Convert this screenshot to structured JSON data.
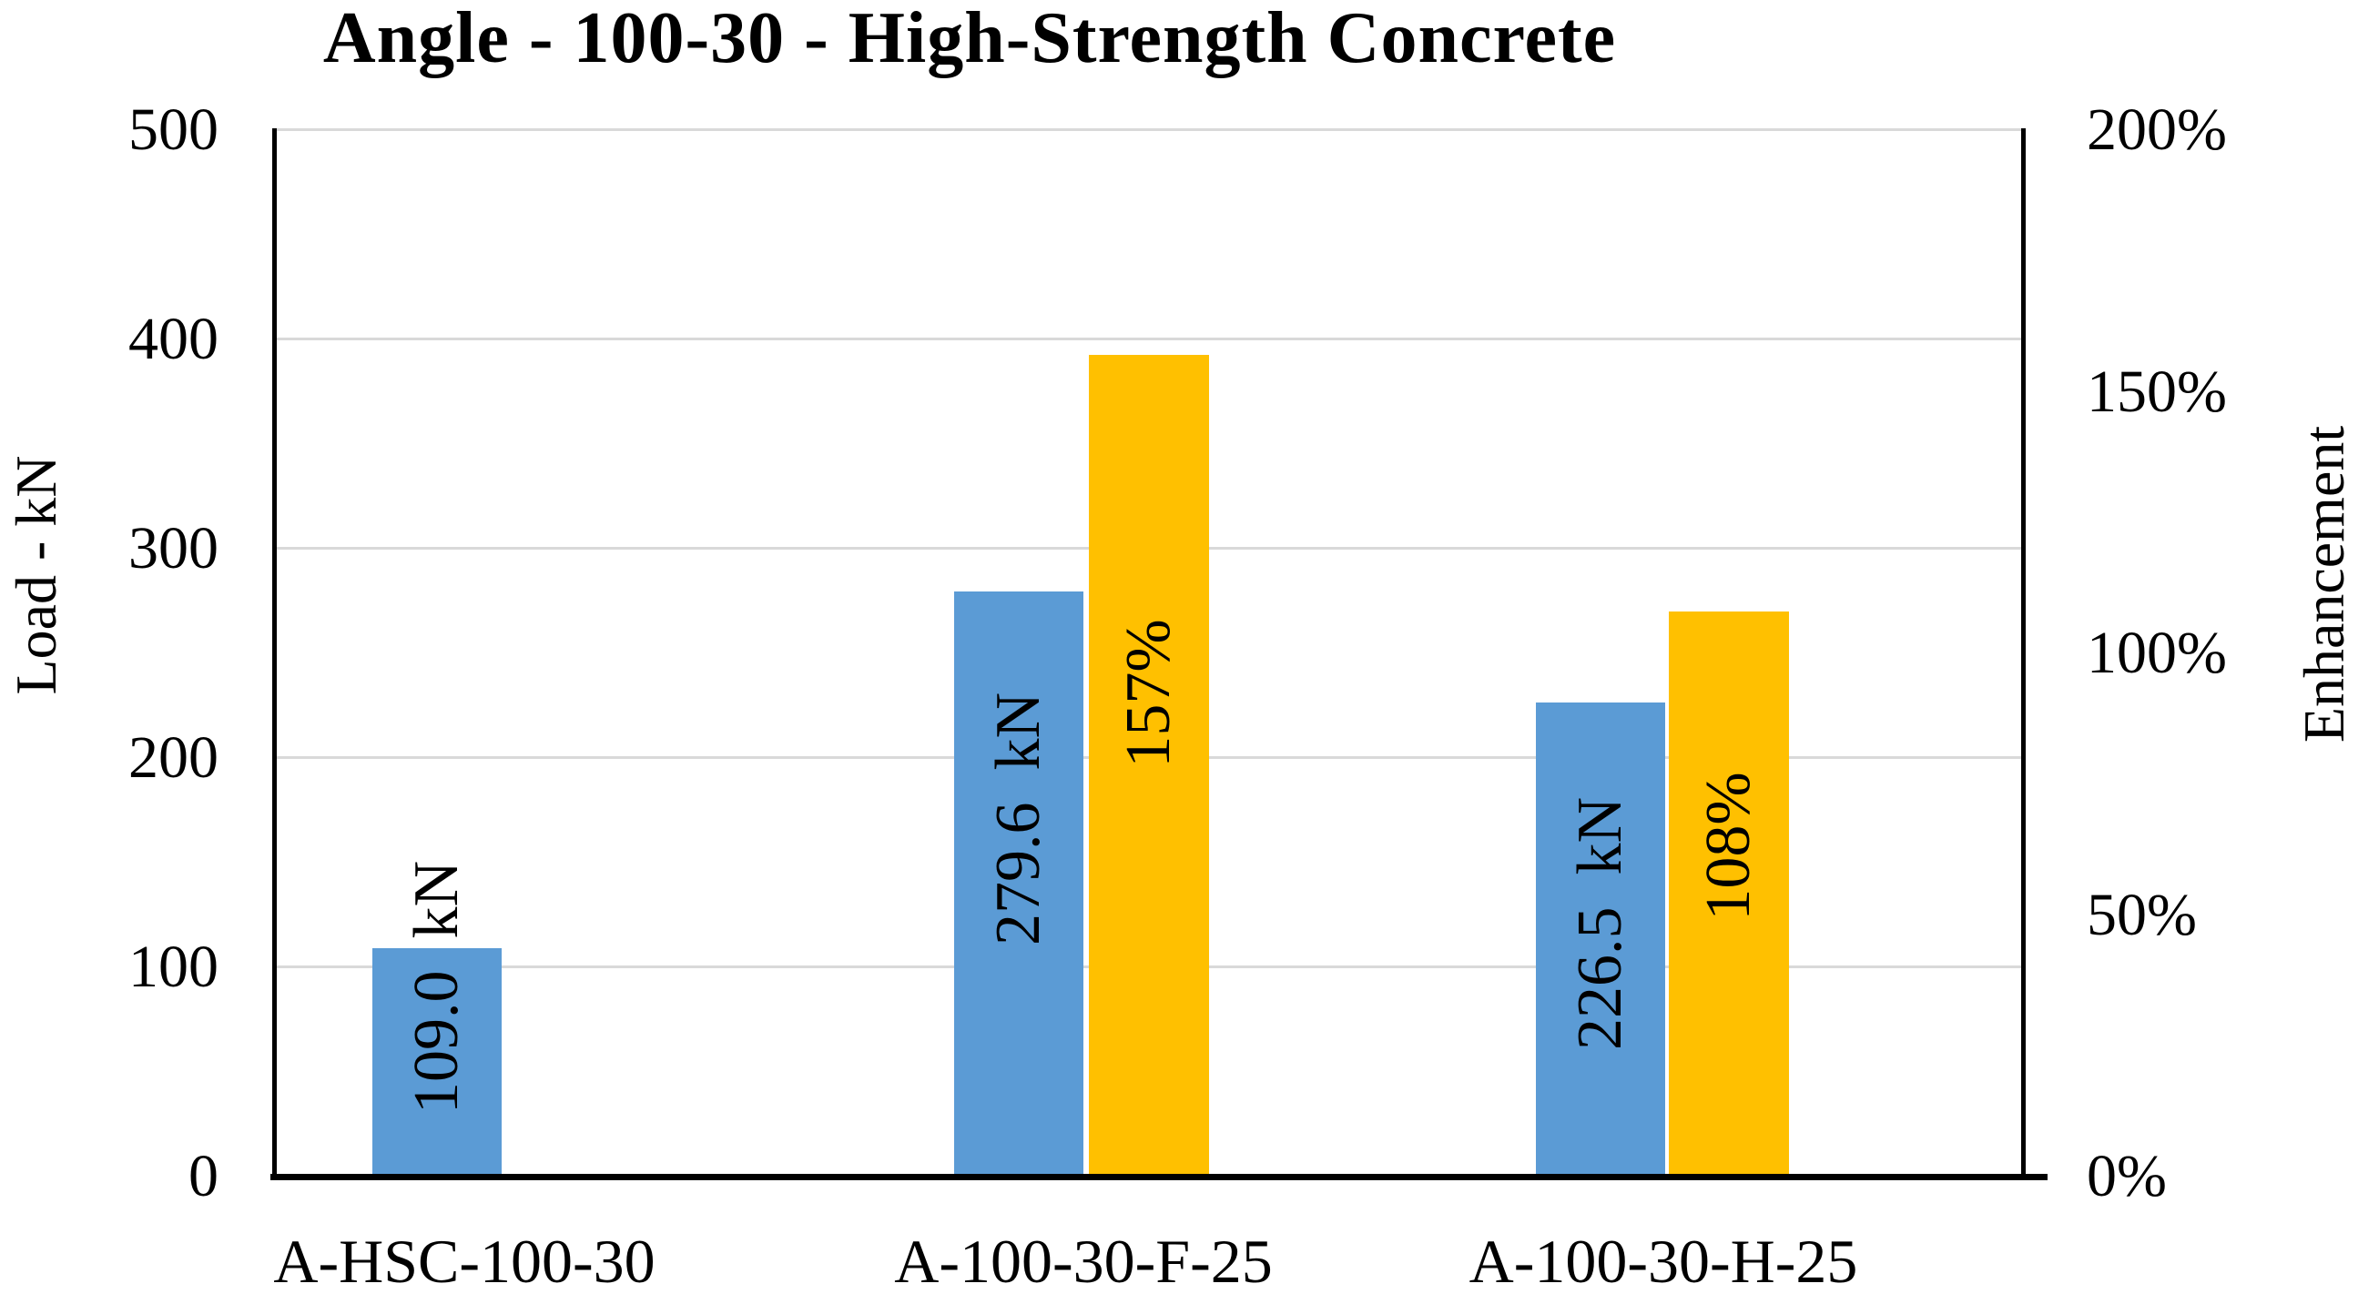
{
  "title": "Angle - 100-30 - High-Strength Concrete",
  "left_axis": {
    "label": "Load - kN",
    "ticks": [
      "500",
      "400",
      "300",
      "200",
      "100",
      "0"
    ]
  },
  "right_axis": {
    "label": "Enhancement",
    "ticks": [
      "200%",
      "150%",
      "100%",
      "50%",
      "0%"
    ]
  },
  "colors": {
    "load_bar": "#5B9BD5",
    "enhancement_bar": "#FFC000",
    "gridline": "#D9D9D9",
    "axis": "#000000",
    "text": "#000000"
  },
  "chart_data": {
    "type": "bar",
    "title": "Angle - 100-30 - High-Strength Concrete",
    "categories": [
      "A-HSC-100-30",
      "A-100-30-F-25",
      "A-100-30-H-25"
    ],
    "series": [
      {
        "name": "Load",
        "axis": "left",
        "unit": "kN",
        "color": "#5B9BD5",
        "values": [
          109.0,
          279.6,
          226.5
        ],
        "labels": [
          "109.0  kN",
          "279.6  kN",
          "226.5  kN"
        ]
      },
      {
        "name": "Enhancement",
        "axis": "right",
        "unit": "%",
        "color": "#FFC000",
        "values": [
          null,
          157,
          108
        ],
        "labels": [
          null,
          "157%",
          "108%"
        ]
      }
    ],
    "left_ylabel": "Load - kN",
    "right_ylabel": "Enhancement",
    "left_ylim": [
      0,
      500
    ],
    "left_tick_step": 100,
    "right_ylim": [
      0,
      200
    ],
    "right_tick_step": 50,
    "grid": "horizontal",
    "legend": "none"
  }
}
